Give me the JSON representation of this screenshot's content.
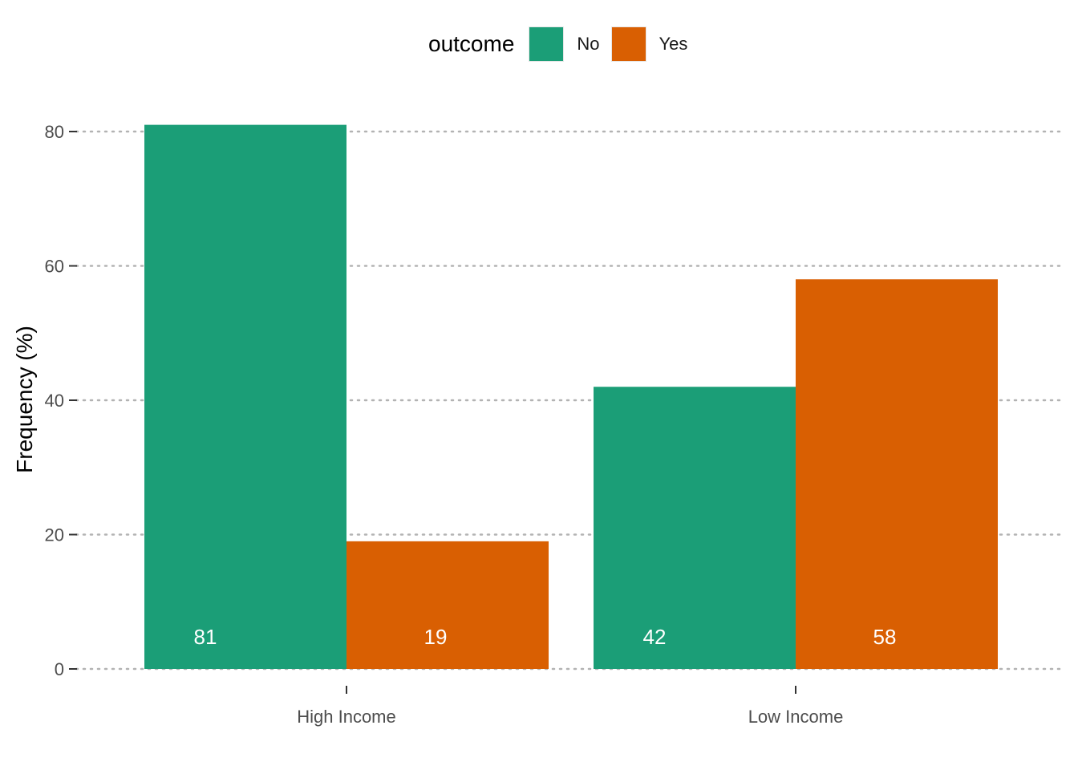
{
  "chart_data": {
    "type": "bar",
    "categories": [
      "High Income",
      "Low Income"
    ],
    "series": [
      {
        "name": "No",
        "values": [
          81,
          42
        ],
        "color": "#1B9E77"
      },
      {
        "name": "Yes",
        "values": [
          19,
          58
        ],
        "color": "#D95F02"
      }
    ],
    "data_labels": [
      [
        "81",
        "42"
      ],
      [
        "19",
        "58"
      ]
    ],
    "ylabel": "Frequency (%)",
    "xlabel": "",
    "ylim": [
      0,
      85
    ],
    "yticks": [
      0,
      20,
      40,
      60,
      80
    ],
    "grid": "horizontal dotted",
    "legend": {
      "title": "outcome",
      "position": "top"
    }
  }
}
